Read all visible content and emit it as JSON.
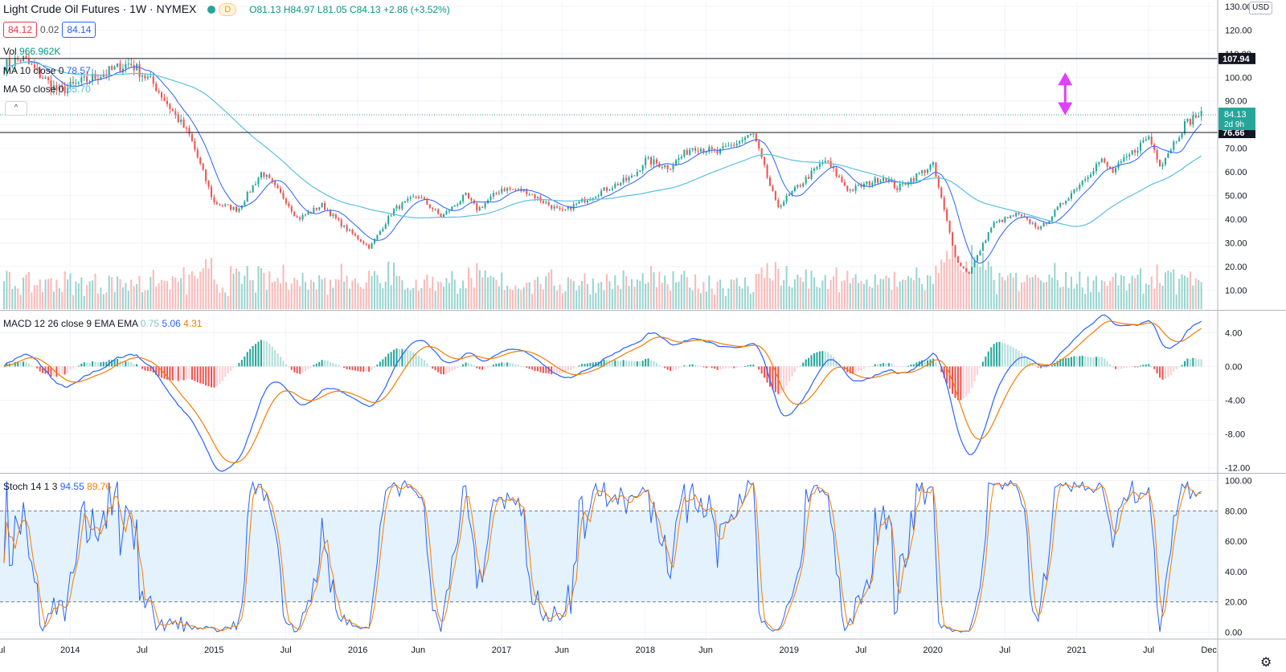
{
  "header": {
    "symbol_title": "Light Crude Oil Futures · 1W · NYMEX",
    "badge": "D",
    "open": "O81.13",
    "high": "H84.97",
    "low": "L81.05",
    "close": "C84.13",
    "change": "+2.86 (+3.52%)",
    "bid": "84.12",
    "spread": "0.02",
    "ask": "84.14"
  },
  "legends": {
    "vol_label": "Vol",
    "vol_value": "966.962K",
    "ma10_label": "MA 10 close 0",
    "ma10_value": "78.57",
    "ma50_label": "MA 50 close 0",
    "ma50_value": "65.70",
    "macd_label": "MACD 12 26 close 9 EMA EMA",
    "macd_hist": "0.75",
    "macd_line": "5.06",
    "macd_signal": "4.31",
    "stoch_label": "Stoch 14 1 3",
    "stoch_k": "94.55",
    "stoch_d": "89.76"
  },
  "currency": "USD",
  "collapse_glyph": "^",
  "settings_glyph": "⚙",
  "colors": {
    "up": "#26a69a",
    "down": "#ef5350",
    "ma10": "#2962ff",
    "ma50": "#5bc0de",
    "macd": "#2962ff",
    "signal": "#f57c00",
    "stoch_k": "#2962ff",
    "stoch_d": "#f57c00",
    "arrow": "#e040fb",
    "band": "#e3f2fd"
  },
  "chart_data": [
    {
      "type": "candlestick",
      "title": "Light Crude Oil Futures · 1W · NYMEX",
      "x_ticks": [
        "ul",
        "2014",
        "Jul",
        "2015",
        "Jul",
        "2016",
        "Jun",
        "2017",
        "Jun",
        "2018",
        "Jun",
        "2019",
        "Jul",
        "2020",
        "Jul",
        "2021",
        "Jul",
        "Dec"
      ],
      "y_ticks": [
        "130.00",
        "120.00",
        "110.00",
        "100.00",
        "90.00",
        "80.00",
        "70.00",
        "60.00",
        "50.00",
        "40.00",
        "30.00",
        "20.00",
        "10.00"
      ],
      "ylim": [
        2,
        132
      ],
      "price_keypoints": [
        {
          "date": "2013-07",
          "price": 104
        },
        {
          "date": "2013-09",
          "price": 108
        },
        {
          "date": "2013-12",
          "price": 94
        },
        {
          "date": "2014-03",
          "price": 100
        },
        {
          "date": "2014-06",
          "price": 106
        },
        {
          "date": "2014-08",
          "price": 97
        },
        {
          "date": "2014-11",
          "price": 75
        },
        {
          "date": "2015-01",
          "price": 47
        },
        {
          "date": "2015-03",
          "price": 44
        },
        {
          "date": "2015-05",
          "price": 60
        },
        {
          "date": "2015-07",
          "price": 48
        },
        {
          "date": "2015-08",
          "price": 40
        },
        {
          "date": "2015-10",
          "price": 46
        },
        {
          "date": "2015-12",
          "price": 36
        },
        {
          "date": "2016-02",
          "price": 28
        },
        {
          "date": "2016-04",
          "price": 44
        },
        {
          "date": "2016-06",
          "price": 50
        },
        {
          "date": "2016-08",
          "price": 41
        },
        {
          "date": "2016-10",
          "price": 50
        },
        {
          "date": "2016-11",
          "price": 44
        },
        {
          "date": "2017-01",
          "price": 53
        },
        {
          "date": "2017-03",
          "price": 52
        },
        {
          "date": "2017-06",
          "price": 43
        },
        {
          "date": "2017-09",
          "price": 51
        },
        {
          "date": "2017-12",
          "price": 58
        },
        {
          "date": "2018-01",
          "price": 65
        },
        {
          "date": "2018-03",
          "price": 62
        },
        {
          "date": "2018-05",
          "price": 71
        },
        {
          "date": "2018-07",
          "price": 68
        },
        {
          "date": "2018-10",
          "price": 76
        },
        {
          "date": "2018-12",
          "price": 45
        },
        {
          "date": "2019-02",
          "price": 55
        },
        {
          "date": "2019-04",
          "price": 65
        },
        {
          "date": "2019-06",
          "price": 52
        },
        {
          "date": "2019-09",
          "price": 58
        },
        {
          "date": "2019-10",
          "price": 53
        },
        {
          "date": "2020-01",
          "price": 63
        },
        {
          "date": "2020-03",
          "price": 22
        },
        {
          "date": "2020-04",
          "price": 17
        },
        {
          "date": "2020-06",
          "price": 38
        },
        {
          "date": "2020-08",
          "price": 42
        },
        {
          "date": "2020-10",
          "price": 36
        },
        {
          "date": "2020-12",
          "price": 48
        },
        {
          "date": "2021-03",
          "price": 65
        },
        {
          "date": "2021-04",
          "price": 60
        },
        {
          "date": "2021-07",
          "price": 75
        },
        {
          "date": "2021-08",
          "price": 63
        },
        {
          "date": "2021-10",
          "price": 80
        },
        {
          "date": "2021-11",
          "price": 84
        }
      ],
      "annotations": [
        {
          "label": "107.94",
          "price": 107.94
        },
        {
          "label": "76.66",
          "price": 76.66
        },
        {
          "label": "84.13",
          "price": 84.13
        },
        {
          "label": "2d 9h"
        }
      ]
    },
    {
      "type": "line",
      "title": "MACD 12 26 close 9 EMA EMA",
      "y_ticks": [
        "4.00",
        "0.00",
        "-4.00",
        "-8.00",
        "-12.00"
      ],
      "ylim": [
        -12.5,
        6.5
      ]
    },
    {
      "type": "line",
      "title": "Stoch 14 1 3",
      "y_ticks": [
        "100.00",
        "80.00",
        "60.00",
        "40.00",
        "20.00",
        "0.00"
      ],
      "ylim": [
        -4,
        104
      ],
      "bands": [
        20,
        80
      ]
    }
  ]
}
